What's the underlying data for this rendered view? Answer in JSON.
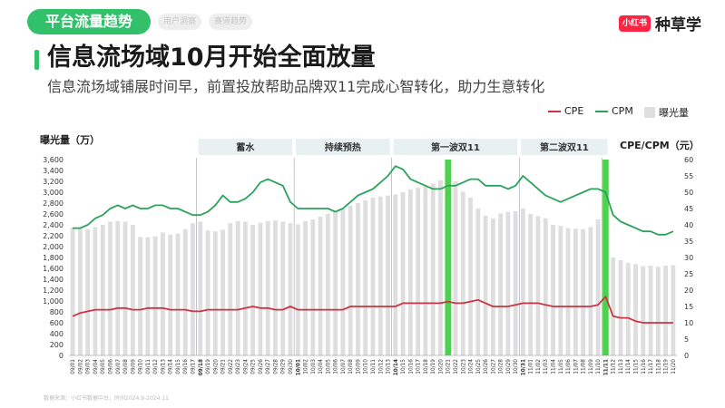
{
  "tabs": {
    "active": "平台流量趋势",
    "muted": [
      "用户洞察",
      "赛道趋势"
    ]
  },
  "brand": {
    "badge": "小红书",
    "name": "种草学"
  },
  "headline": "信息流场域10月开始全面放量",
  "subtitle": "信息流场域铺展时间早，前置投放帮助品牌双11完成心智转化，助力生意转化",
  "footnote": "数据来源：小红书数据中台，时间2024.9-2024.11",
  "colors": {
    "cpe": "#cc3344",
    "cpm": "#2aa35a",
    "bars": "#dedede",
    "highlight": "#4fd150",
    "phase": "#e8f0f2"
  },
  "chart_data": {
    "type": "bar",
    "title": "",
    "ylabel": "曝光量（万）",
    "y2label": "CPE/CPM（元）",
    "ylim": [
      0,
      3600
    ],
    "y2lim": [
      0,
      60
    ],
    "y_ticks": [
      "0",
      "200",
      "400",
      "600",
      "800",
      "1,000",
      "1,200",
      "1,400",
      "1,600",
      "1,800",
      "2,000",
      "2,200",
      "2,400",
      "2,600",
      "2,800",
      "3,000",
      "3,200",
      "3,400",
      "3,600"
    ],
    "y2_ticks": [
      "0",
      "5",
      "10",
      "15",
      "20",
      "25",
      "30",
      "35",
      "40",
      "45",
      "50",
      "55",
      "60"
    ],
    "legend": [
      "CPE",
      "CPM",
      "曝光量"
    ],
    "legend_position": "top-right",
    "phases": [
      {
        "label": "蓄水",
        "from": "09/18",
        "to": "09/30"
      },
      {
        "label": "持续预热",
        "from": "10/01",
        "to": "10/13"
      },
      {
        "label": "第一波双11",
        "from": "10/14",
        "to": "10/30"
      },
      {
        "label": "第二波双11",
        "from": "10/31",
        "to": "11/11"
      }
    ],
    "bold_dates": [
      "09/18",
      "10/01",
      "10/14",
      "10/31",
      "11/11"
    ],
    "highlight_dates": [
      "10/21",
      "11/11"
    ],
    "categories": [
      "09/01",
      "09/02",
      "09/03",
      "09/04",
      "09/05",
      "09/06",
      "09/07",
      "09/08",
      "09/09",
      "09/10",
      "09/11",
      "09/12",
      "09/13",
      "09/14",
      "09/15",
      "09/16",
      "09/17",
      "09/18",
      "09/19",
      "09/20",
      "09/21",
      "09/22",
      "09/23",
      "09/24",
      "09/25",
      "09/26",
      "09/27",
      "09/28",
      "09/29",
      "09/30",
      "10/01",
      "10/02",
      "10/03",
      "10/04",
      "10/05",
      "10/06",
      "10/07",
      "10/08",
      "10/09",
      "10/10",
      "10/11",
      "10/12",
      "10/13",
      "10/14",
      "10/15",
      "10/16",
      "10/17",
      "10/18",
      "10/19",
      "10/20",
      "10/21",
      "10/22",
      "10/23",
      "10/24",
      "10/25",
      "10/26",
      "10/27",
      "10/28",
      "10/29",
      "10/30",
      "10/31",
      "11/01",
      "11/02",
      "11/03",
      "11/04",
      "11/05",
      "11/06",
      "11/07",
      "11/08",
      "11/09",
      "11/10",
      "11/11",
      "11/12",
      "11/13",
      "11/14",
      "11/15",
      "11/16",
      "11/17",
      "11/18",
      "11/19",
      "11/20"
    ],
    "series": [
      {
        "name": "曝光量",
        "kind": "bar",
        "axis": "left",
        "values": [
          2350,
          2330,
          2320,
          2360,
          2400,
          2460,
          2470,
          2460,
          2400,
          2180,
          2170,
          2190,
          2260,
          2220,
          2240,
          2320,
          2430,
          2460,
          2300,
          2280,
          2310,
          2430,
          2470,
          2460,
          2400,
          2440,
          2470,
          2480,
          2460,
          2430,
          2410,
          2470,
          2500,
          2550,
          2600,
          2650,
          2700,
          2750,
          2800,
          2850,
          2900,
          2920,
          2940,
          2960,
          3000,
          3050,
          3080,
          3120,
          3160,
          3220,
          3280,
          3200,
          3010,
          2900,
          2700,
          2570,
          2520,
          2610,
          2640,
          2650,
          2700,
          2600,
          2560,
          2520,
          2400,
          2380,
          2340,
          2330,
          2320,
          2360,
          2500,
          2720,
          1800,
          1750,
          1700,
          1680,
          1640,
          1650,
          1630,
          1650,
          1660
        ]
      },
      {
        "name": "CPM",
        "kind": "line",
        "axis": "right",
        "values": [
          39,
          39,
          40,
          42,
          43,
          45,
          46,
          45,
          46,
          45,
          45,
          46,
          46,
          45,
          45,
          44,
          43,
          43,
          44,
          46,
          49,
          47,
          47,
          48,
          50,
          53,
          54,
          53,
          52,
          47,
          45,
          45,
          45,
          45,
          45,
          44,
          45,
          47,
          49,
          50,
          51,
          53,
          55,
          58,
          57,
          54,
          53,
          52,
          51,
          51,
          52,
          52,
          53,
          54,
          54,
          52,
          52,
          52,
          51,
          52,
          55,
          53,
          51,
          49,
          48,
          47,
          48,
          49,
          50,
          51,
          51,
          50,
          43,
          41,
          40,
          39,
          38,
          38,
          37,
          37,
          38
        ]
      },
      {
        "name": "CPE",
        "kind": "line",
        "axis": "right",
        "values": [
          12,
          13,
          13.5,
          14,
          14,
          14,
          14.5,
          14.5,
          14,
          14,
          14.5,
          14.5,
          14.5,
          14,
          14,
          14,
          13.5,
          13.5,
          14,
          14,
          14,
          14,
          14,
          14.5,
          15,
          14.5,
          14.5,
          14,
          14,
          15,
          14,
          14,
          14,
          14,
          14,
          14,
          14,
          15,
          15,
          15,
          15,
          15,
          15,
          15,
          16,
          16,
          16,
          16,
          16,
          16,
          16.5,
          16,
          16,
          16.5,
          17,
          16,
          15,
          15,
          15,
          15.5,
          16,
          16,
          16,
          15.5,
          15,
          15,
          15,
          15,
          15,
          15,
          15.5,
          18,
          12,
          11.5,
          11.5,
          10.5,
          10,
          10,
          10,
          10,
          10
        ]
      }
    ]
  }
}
